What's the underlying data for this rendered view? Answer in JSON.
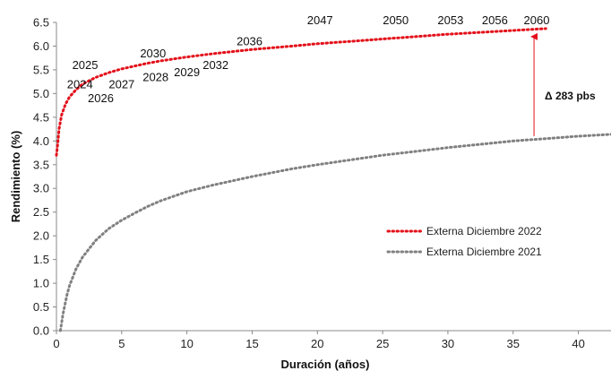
{
  "chart_data": {
    "type": "line",
    "xlabel": "Duración (años)",
    "ylabel": "Rendimiento (%)",
    "xlim": [
      0,
      42.5
    ],
    "ylim": [
      0,
      6.5
    ],
    "x_ticks": [
      "0",
      "5",
      "10",
      "15",
      "20",
      "25",
      "30",
      "35",
      "40"
    ],
    "y_ticks": [
      "0.0",
      "0.5",
      "1.0",
      "1.5",
      "2.0",
      "2.5",
      "3.0",
      "3.5",
      "4.0",
      "4.5",
      "5.0",
      "5.5",
      "6.0",
      "6.5"
    ],
    "grid": false,
    "legend_position": "right-center",
    "series": [
      {
        "name": "Externa Diciembre 2022",
        "color": "#e3101a",
        "style": "dotted",
        "points": [
          [
            0,
            3.7
          ],
          [
            0.1,
            3.95
          ],
          [
            0.2,
            4.25
          ],
          [
            0.4,
            4.55
          ],
          [
            0.7,
            4.78
          ],
          [
            1.0,
            4.93
          ],
          [
            1.5,
            5.08
          ],
          [
            2.0,
            5.2
          ],
          [
            3.0,
            5.34
          ],
          [
            4.0,
            5.44
          ],
          [
            5.0,
            5.52
          ],
          [
            6.0,
            5.58
          ],
          [
            7.0,
            5.64
          ],
          [
            8.0,
            5.69
          ],
          [
            10.0,
            5.77
          ],
          [
            12.0,
            5.84
          ],
          [
            15.0,
            5.93
          ],
          [
            18.0,
            6.0
          ],
          [
            20.0,
            6.05
          ],
          [
            22.5,
            6.1
          ],
          [
            25.0,
            6.15
          ],
          [
            27.5,
            6.2
          ],
          [
            30.0,
            6.25
          ],
          [
            32.5,
            6.29
          ],
          [
            35.0,
            6.33
          ],
          [
            37.5,
            6.37
          ]
        ]
      },
      {
        "name": "Externa Diciembre 2021",
        "color": "#808080",
        "style": "dotted",
        "points": [
          [
            0.3,
            0.0
          ],
          [
            0.5,
            0.35
          ],
          [
            0.8,
            0.75
          ],
          [
            1.0,
            0.95
          ],
          [
            1.5,
            1.3
          ],
          [
            2.0,
            1.55
          ],
          [
            3.0,
            1.9
          ],
          [
            4.0,
            2.15
          ],
          [
            5.0,
            2.33
          ],
          [
            6.0,
            2.48
          ],
          [
            7.0,
            2.62
          ],
          [
            8.0,
            2.74
          ],
          [
            10.0,
            2.93
          ],
          [
            12.0,
            3.07
          ],
          [
            15.0,
            3.25
          ],
          [
            18.0,
            3.41
          ],
          [
            20.0,
            3.5
          ],
          [
            22.5,
            3.6
          ],
          [
            25.0,
            3.7
          ],
          [
            27.5,
            3.78
          ],
          [
            30.0,
            3.86
          ],
          [
            32.5,
            3.93
          ],
          [
            35.0,
            4.0
          ],
          [
            37.5,
            4.05
          ],
          [
            40.0,
            4.1
          ],
          [
            42.5,
            4.14
          ]
        ]
      }
    ],
    "point_labels": [
      {
        "text": "2024",
        "x": 1.8,
        "y": 5.2
      },
      {
        "text": "2025",
        "x": 2.2,
        "y": 5.6
      },
      {
        "text": "2026",
        "x": 3.4,
        "y": 4.9
      },
      {
        "text": "2027",
        "x": 5.0,
        "y": 5.2
      },
      {
        "text": "2028",
        "x": 7.6,
        "y": 5.35
      },
      {
        "text": "2029",
        "x": 10.0,
        "y": 5.45
      },
      {
        "text": "2030",
        "x": 7.4,
        "y": 5.85
      },
      {
        "text": "2032",
        "x": 12.2,
        "y": 5.6
      },
      {
        "text": "2036",
        "x": 14.8,
        "y": 6.1
      },
      {
        "text": "2047",
        "x": 20.2,
        "y": 6.55
      },
      {
        "text": "2050",
        "x": 26.0,
        "y": 6.55
      },
      {
        "text": "2053",
        "x": 30.2,
        "y": 6.55
      },
      {
        "text": "2056",
        "x": 33.6,
        "y": 6.55
      },
      {
        "text": "2060",
        "x": 36.8,
        "y": 6.55
      }
    ],
    "annotation": {
      "text": "Δ 283 pbs",
      "color": "#e3101a",
      "arrow_x": 36.6,
      "arrow_from_y": 4.1,
      "arrow_to_y": 6.2
    }
  }
}
